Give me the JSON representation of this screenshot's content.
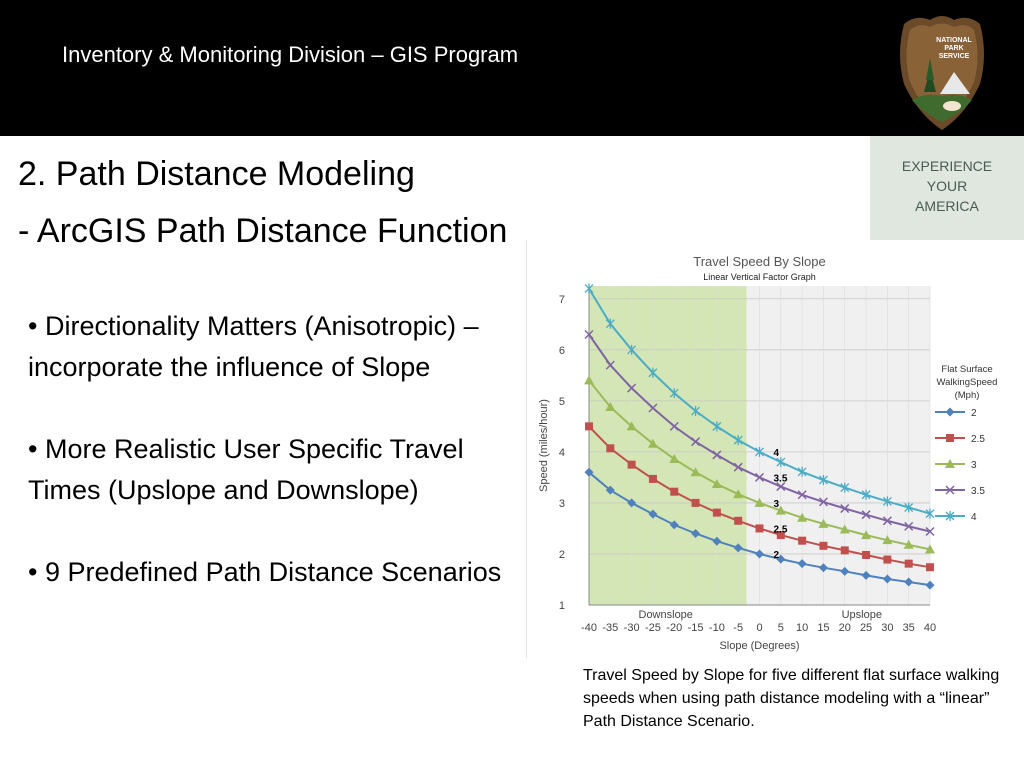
{
  "header": {
    "title": "Inventory & Monitoring Division – GIS Program"
  },
  "logo": {
    "lines": [
      "NATIONAL",
      "PARK",
      "SERVICE"
    ]
  },
  "side_panel": {
    "lines": [
      "EXPERIENCE",
      "YOUR",
      "AMERICA"
    ]
  },
  "slide": {
    "title": "2. Path Distance Modeling",
    "subtitle": "- ArcGIS Path Distance Function",
    "bullets": [
      "• Directionality Matters (Anisotropic) – incorporate the influence of Slope",
      "• More Realistic User Specific Travel Times (Upslope and Downslope)",
      "• 9 Predefined Path Distance Scenarios"
    ]
  },
  "caption": "Travel Speed by Slope for five different flat surface walking speeds when using path distance modeling with a “linear” Path Distance Scenario.",
  "colors": {
    "downslope_band": "#d4e6b5",
    "upslope_band": "#f0f0f0",
    "series": [
      "#4f81bd",
      "#c0504d",
      "#9bbb59",
      "#8064a2",
      "#4bacc6"
    ]
  },
  "chart_data": {
    "type": "line",
    "title": "Travel Speed By Slope",
    "subtitle": "Linear Vertical Factor Graph",
    "xlabel": "Slope (Degrees)",
    "ylabel": "Speed (miles/hour)",
    "x": [
      -40,
      -35,
      -30,
      -25,
      -20,
      -15,
      -10,
      -5,
      0,
      5,
      10,
      15,
      20,
      25,
      30,
      35,
      40
    ],
    "x_tick_labels": [
      "-40",
      "-35",
      "-30",
      "-25",
      "-20",
      "-15",
      "-10",
      "-5",
      "0",
      "5",
      "10",
      "15",
      "20",
      "25",
      "30",
      "35",
      "40"
    ],
    "y_ticks": [
      1,
      2,
      3,
      4,
      5,
      6,
      7
    ],
    "ylim": [
      1,
      7.25
    ],
    "xlim": [
      -40,
      40
    ],
    "grid": true,
    "region_labels": [
      "Downslope",
      "Upslope"
    ],
    "legend_title": [
      "Flat Surface",
      "WalkingSpeed",
      "(Mph)"
    ],
    "legend_placement": "right",
    "series": [
      {
        "name": "2",
        "marker": "diamond",
        "values": [
          3.6,
          3.25,
          3.0,
          2.78,
          2.57,
          2.4,
          2.25,
          2.12,
          2.0,
          1.9,
          1.81,
          1.73,
          1.66,
          1.58,
          1.51,
          1.45,
          1.39
        ]
      },
      {
        "name": "2.5",
        "marker": "square",
        "values": [
          4.5,
          4.07,
          3.75,
          3.47,
          3.22,
          3.0,
          2.81,
          2.65,
          2.5,
          2.37,
          2.26,
          2.16,
          2.07,
          1.98,
          1.89,
          1.81,
          1.74
        ]
      },
      {
        "name": "3",
        "marker": "triangle",
        "values": [
          5.4,
          4.88,
          4.5,
          4.16,
          3.86,
          3.6,
          3.37,
          3.17,
          3.0,
          2.85,
          2.71,
          2.59,
          2.48,
          2.37,
          2.27,
          2.18,
          2.09
        ]
      },
      {
        "name": "3.5",
        "marker": "x",
        "values": [
          6.3,
          5.7,
          5.25,
          4.86,
          4.5,
          4.2,
          3.94,
          3.7,
          3.5,
          3.32,
          3.16,
          3.02,
          2.89,
          2.77,
          2.65,
          2.54,
          2.44
        ]
      },
      {
        "name": "4",
        "marker": "star",
        "values": [
          7.2,
          6.51,
          6.0,
          5.55,
          5.15,
          4.8,
          4.5,
          4.23,
          4.0,
          3.8,
          3.61,
          3.45,
          3.3,
          3.16,
          3.03,
          2.91,
          2.79
        ]
      }
    ],
    "annotations": [
      {
        "x": 0,
        "y": 4.0,
        "text": "4"
      },
      {
        "x": 0,
        "y": 3.5,
        "text": "3.5"
      },
      {
        "x": 0,
        "y": 3.0,
        "text": "3"
      },
      {
        "x": 0,
        "y": 2.5,
        "text": "2.5"
      },
      {
        "x": 0,
        "y": 2.0,
        "text": "2"
      }
    ]
  }
}
